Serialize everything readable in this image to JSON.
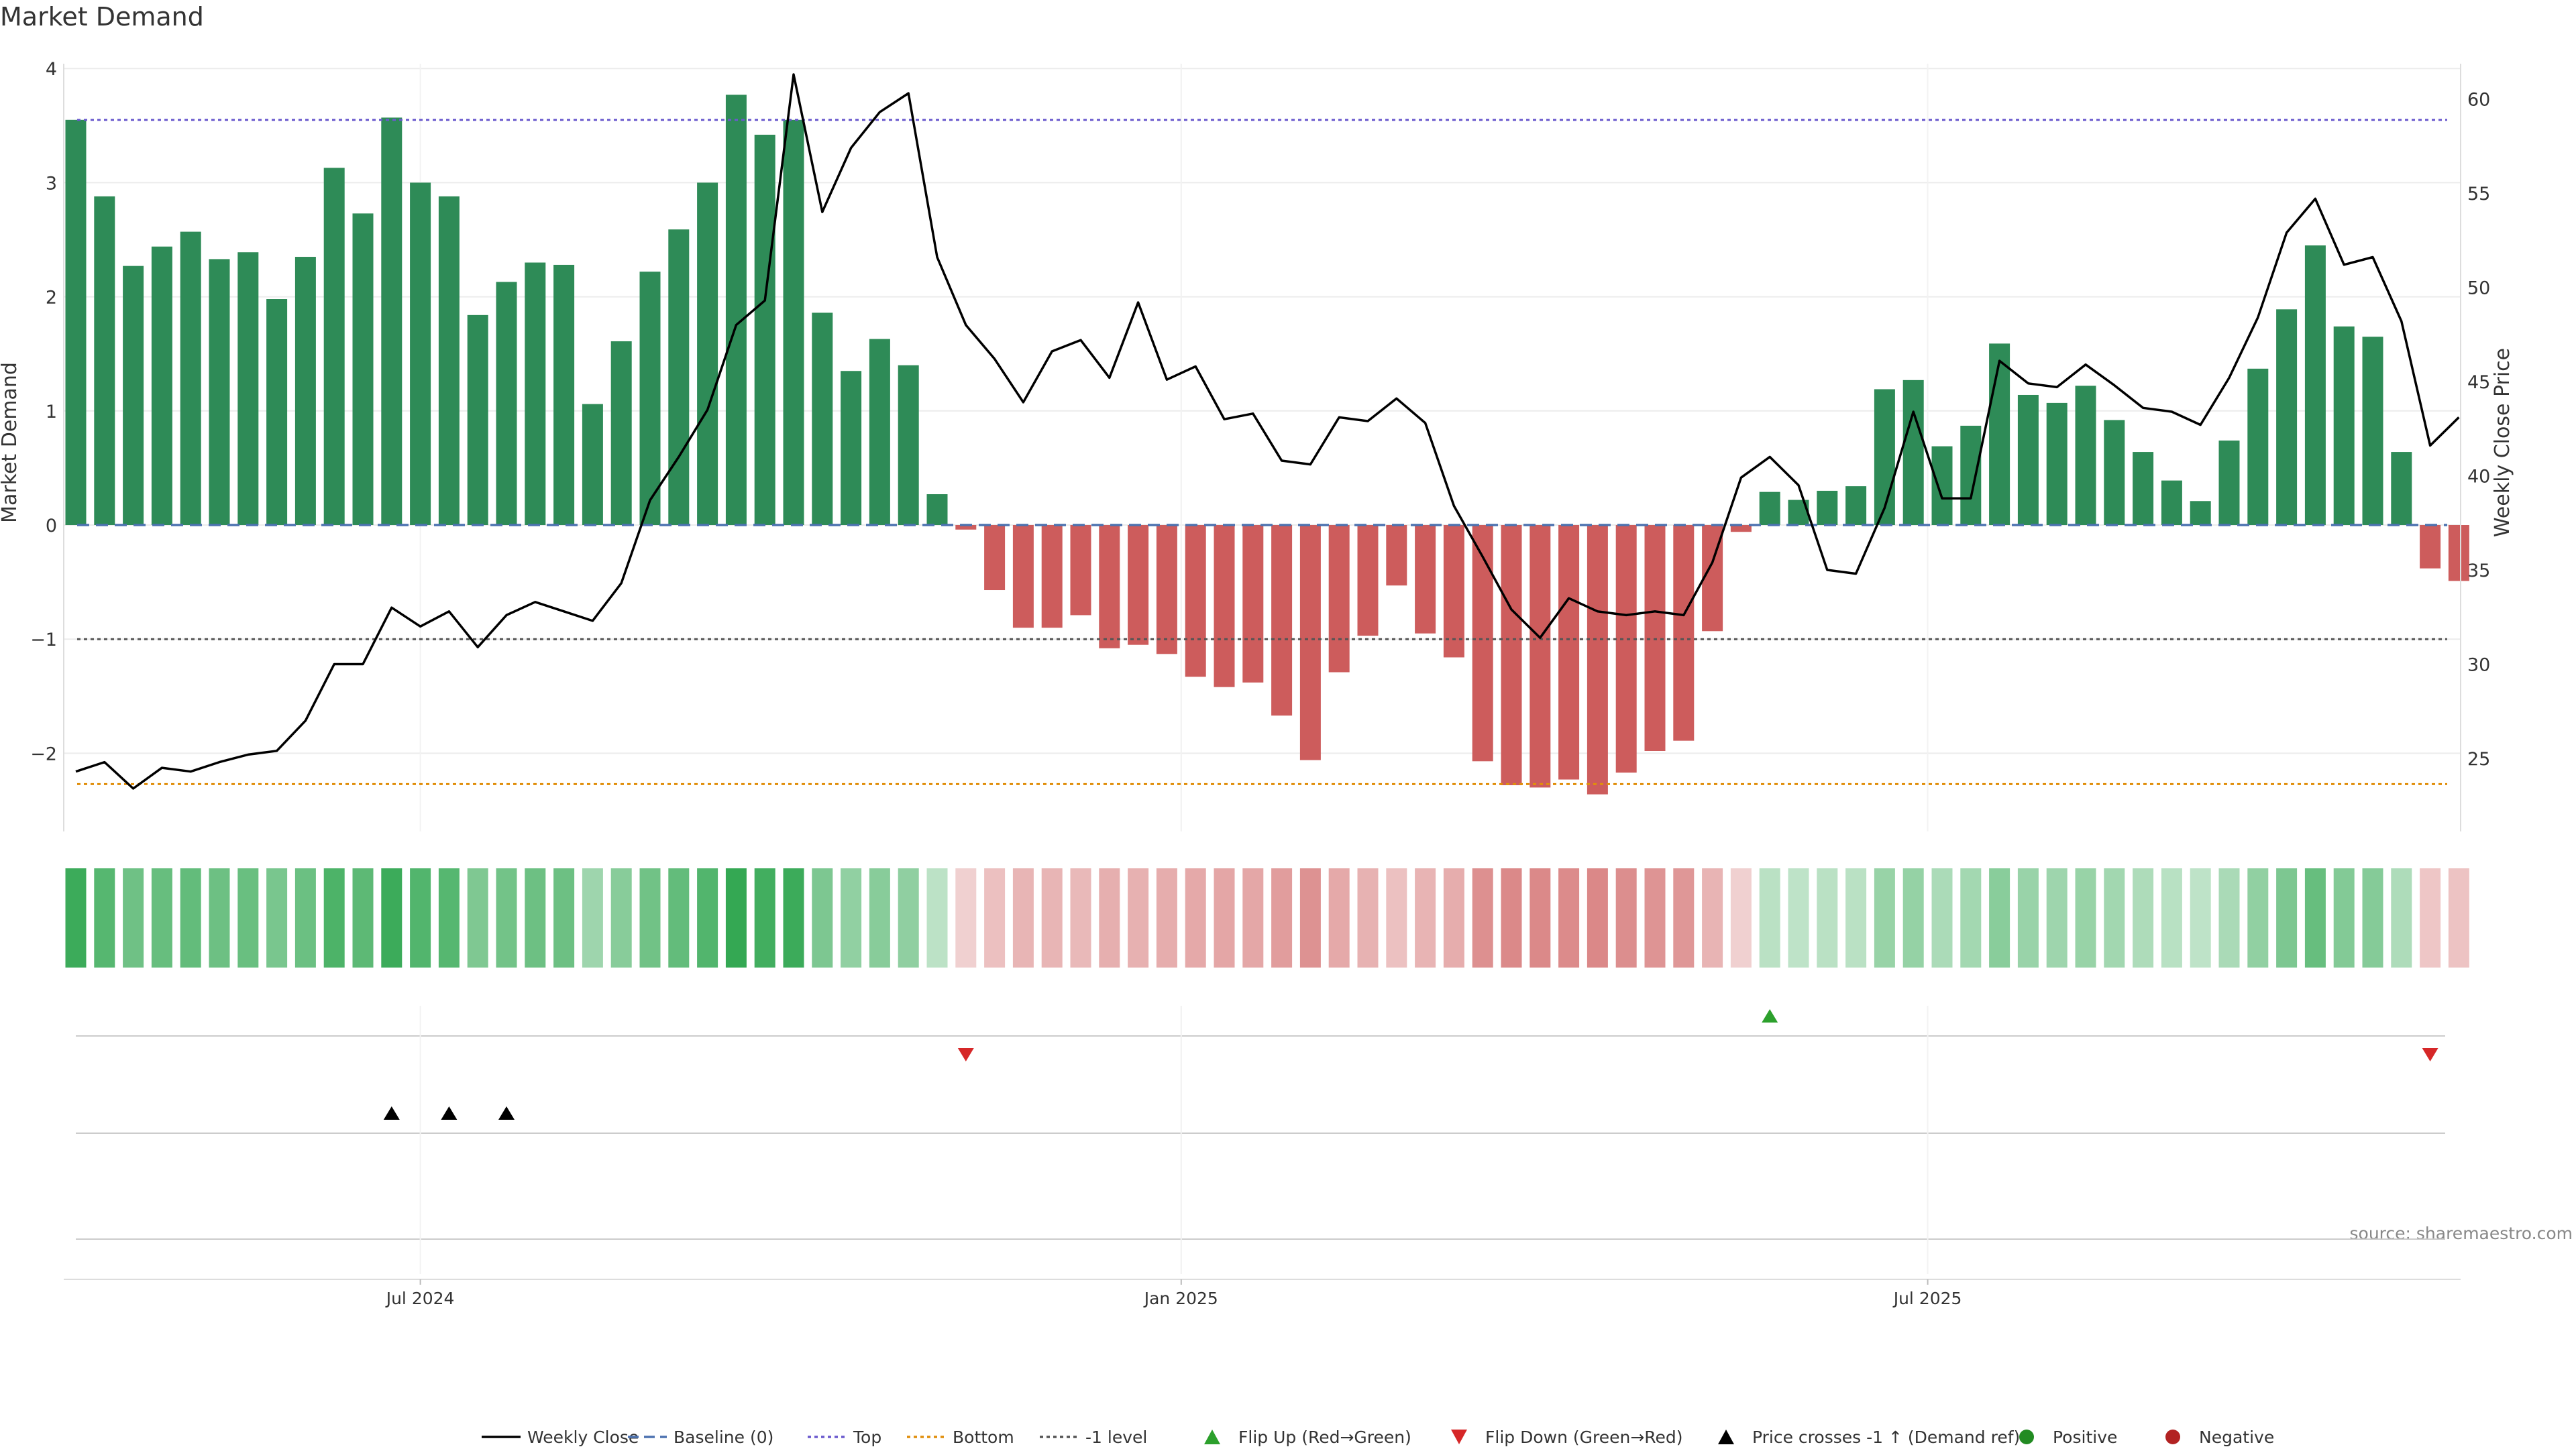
{
  "chart_data": {
    "type": "bar",
    "title": "Market Demand",
    "ylabel": "Market Demand",
    "y2label": "Weekly Close Price",
    "ylim": [
      -2.7,
      4.0
    ],
    "y2lim": [
      22,
      61.3
    ],
    "y_ticks": [
      -2,
      -1,
      0,
      1,
      2,
      3,
      4
    ],
    "y_tick_labels": [
      "−2",
      "−1",
      "0",
      "1",
      "2",
      "3",
      "4"
    ],
    "y2_ticks": [
      25,
      30,
      35,
      40,
      45,
      50,
      55,
      60
    ],
    "y2_tick_labels": [
      "25",
      "30",
      "35",
      "40",
      "45",
      "50",
      "55",
      "60"
    ],
    "x_ticks": [
      {
        "week": 12,
        "label": "Jul 2024"
      },
      {
        "week": 38.5,
        "label": "Jan 2025"
      },
      {
        "week": 64.5,
        "label": "Jul 2025"
      }
    ],
    "levels": {
      "top": 3.55,
      "bottom": -2.27,
      "minus_one": -1,
      "baseline": 0
    },
    "demand": [
      3.55,
      2.88,
      2.27,
      2.44,
      2.57,
      2.33,
      2.39,
      1.98,
      2.35,
      3.13,
      2.73,
      3.57,
      3.0,
      2.88,
      1.84,
      2.13,
      2.3,
      2.28,
      1.06,
      1.61,
      2.22,
      2.59,
      3.0,
      3.77,
      3.42,
      3.55,
      1.86,
      1.35,
      1.63,
      1.4,
      0.27,
      -0.04,
      -0.57,
      -0.9,
      -0.9,
      -0.79,
      -1.08,
      -1.05,
      -1.13,
      -1.33,
      -1.42,
      -1.38,
      -1.67,
      -2.06,
      -1.29,
      -0.97,
      -0.53,
      -0.95,
      -1.16,
      -2.07,
      -2.28,
      -2.3,
      -2.23,
      -2.36,
      -2.17,
      -1.98,
      -1.89,
      -0.93,
      -0.06,
      0.29,
      0.22,
      0.3,
      0.34,
      1.19,
      1.27,
      0.69,
      0.87,
      1.59,
      1.14,
      1.07,
      1.22,
      0.92,
      0.64,
      0.39,
      0.21,
      0.74,
      1.37,
      1.89,
      2.45,
      1.74,
      1.65,
      0.64,
      -0.38,
      -0.49
    ],
    "price": [
      24.3,
      24.8,
      23.4,
      24.5,
      24.3,
      24.8,
      25.2,
      25.4,
      27.0,
      30.0,
      30.0,
      33.0,
      32.0,
      32.8,
      30.9,
      32.6,
      33.3,
      32.8,
      32.3,
      34.3,
      38.7,
      41.0,
      43.5,
      48.0,
      49.3,
      61.3,
      54.0,
      57.4,
      59.3,
      60.3,
      51.6,
      48.0,
      46.2,
      43.9,
      46.6,
      47.2,
      45.2,
      49.2,
      45.1,
      45.8,
      43.0,
      43.3,
      40.8,
      40.6,
      43.1,
      42.9,
      44.1,
      42.8,
      38.4,
      35.7,
      32.9,
      31.4,
      33.5,
      32.8,
      32.6,
      32.8,
      32.6,
      35.4,
      39.9,
      41.0,
      39.5,
      35.0,
      34.8,
      38.3,
      43.4,
      38.8,
      38.8,
      46.1,
      44.9,
      44.7,
      45.9,
      44.8,
      43.6,
      43.4,
      42.7,
      45.2,
      48.4,
      52.9,
      54.7,
      51.2,
      51.6,
      48.2,
      41.6,
      43.1
    ],
    "flip_up": [
      {
        "week": 59,
        "label": "Flip Up (Red→Green)"
      }
    ],
    "flip_down": [
      {
        "week": 31
      },
      {
        "week": 82
      }
    ],
    "price_crosses": [
      11,
      13,
      15
    ],
    "source": "source: sharemaestro.com",
    "legend": [
      {
        "type": "line",
        "label": "Weekly Close",
        "color": "#000000"
      },
      {
        "type": "dashed",
        "label": "Baseline (0)",
        "color": "#4c72b0"
      },
      {
        "type": "dotted",
        "label": "Top",
        "color": "#6a5acd"
      },
      {
        "type": "dotted",
        "label": "Bottom",
        "color": "#e08e0b"
      },
      {
        "type": "dotted",
        "label": "-1 level",
        "color": "#555555"
      },
      {
        "type": "tri-up",
        "label": "Flip Up (Red→Green)",
        "color": "#2ca02c"
      },
      {
        "type": "tri-down",
        "label": "Flip Down (Green→Red)",
        "color": "#d62728"
      },
      {
        "type": "tri-up",
        "label": "Price crosses -1 ↑ (Demand ref)",
        "color": "#000000"
      },
      {
        "type": "dot",
        "label": "Positive",
        "color": "#228b22"
      },
      {
        "type": "dot",
        "label": "Negative",
        "color": "#b22222"
      }
    ],
    "colors": {
      "positive_bar": "#2e8b57",
      "negative_bar": "#cd5c5c",
      "strip_positive": "#34a853",
      "strip_negative": "#cd5c5c",
      "grid": "#ececec",
      "top_line": "#6a5acd",
      "bottom_line": "#e08e0b",
      "minus_one_line": "#555555",
      "baseline_line": "#4c72b0"
    }
  }
}
